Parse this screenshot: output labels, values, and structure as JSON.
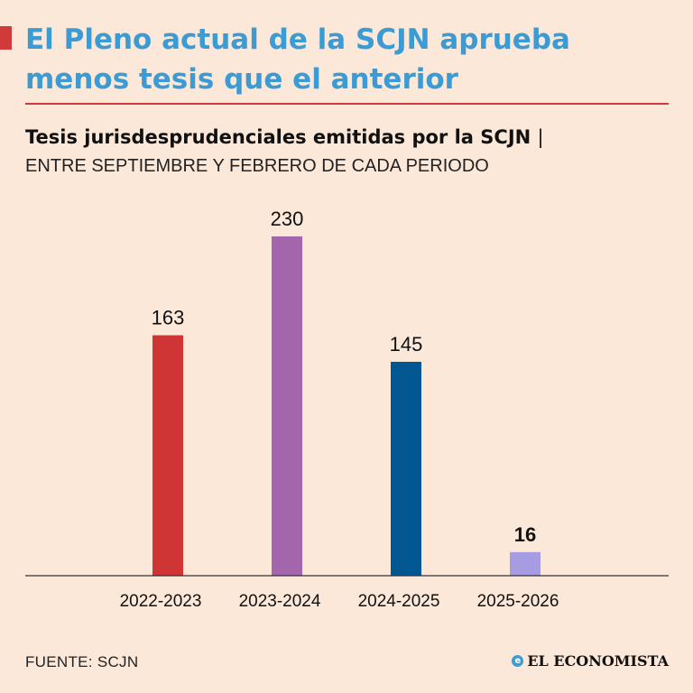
{
  "header": {
    "title_lines": [
      "El Pleno actual de la SCJN aprueba",
      "menos tesis que el anterior"
    ],
    "subtitle": "Tesis jurisdesprudenciales emitidas por la SCJN",
    "subtitle_separator": "|",
    "subtitle2": "ENTRE SEPTIEMBRE Y FEBRERO DE CADA PERIODO"
  },
  "footer": {
    "source": "FUENTE: SCJN",
    "brand": "EL ECONOMISTA",
    "brand_icon": "e"
  },
  "colors": {
    "title": "#3c9bd3",
    "accent": "#d03a3a",
    "background": "#fce8d9"
  },
  "chart_data": {
    "type": "bar",
    "title": "Tesis jurisdesprudenciales emitidas por la SCJN",
    "categories": [
      "2022-2023",
      "2023-2024",
      "2024-2025",
      "2025-2026"
    ],
    "values": [
      163,
      230,
      145,
      16
    ],
    "bar_colors": [
      "#cf3535",
      "#a366ac",
      "#015792",
      "#a79be1"
    ],
    "highlight_last_label": true,
    "xlabel": "",
    "ylabel": "",
    "ylim": [
      0,
      230
    ],
    "grid": false
  }
}
